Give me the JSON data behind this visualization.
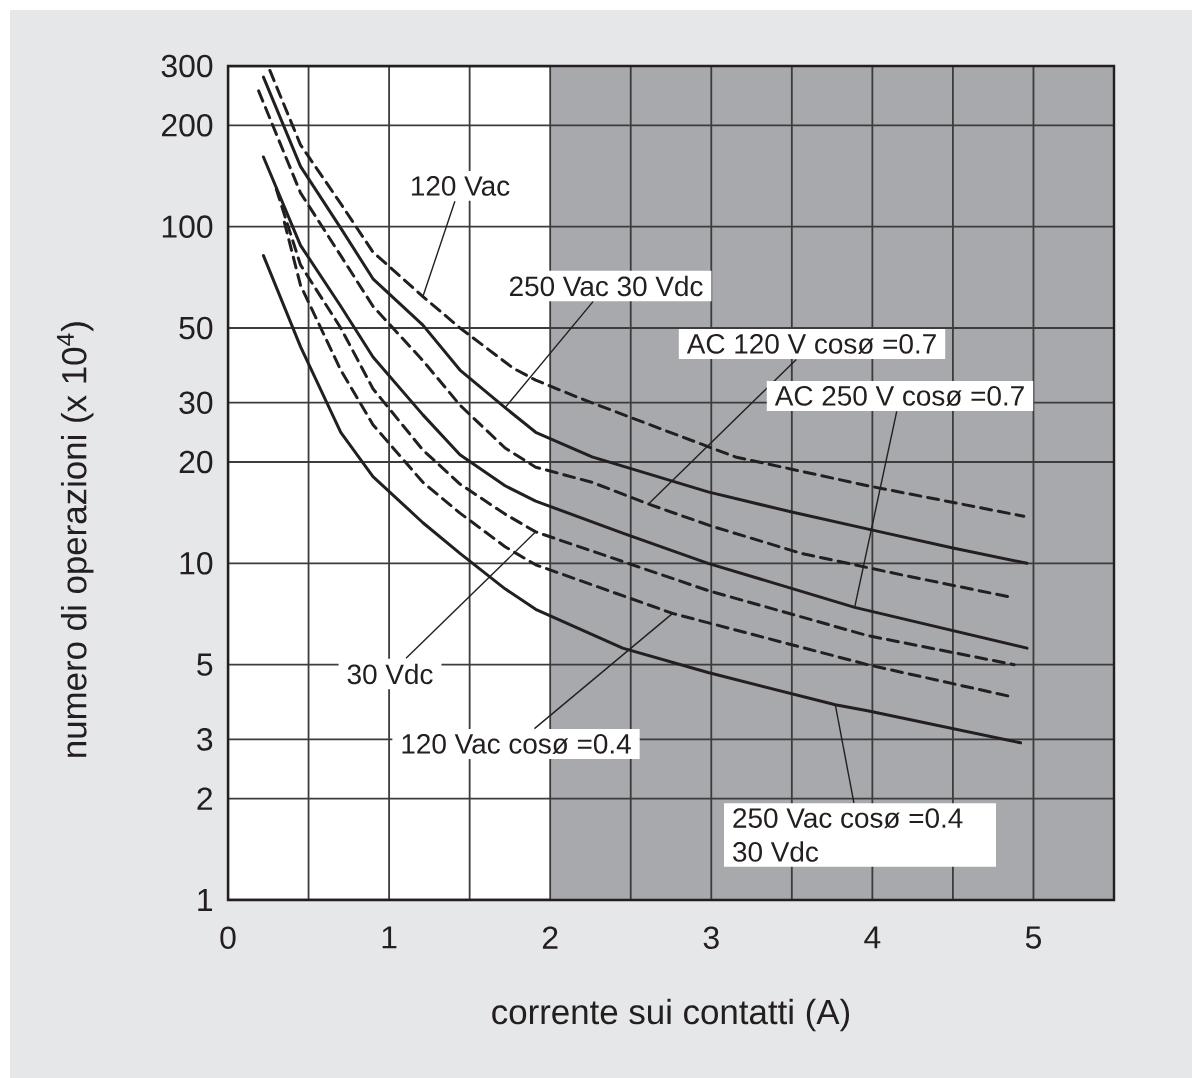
{
  "chart_data": {
    "type": "line",
    "xlabel": "corrente sui contatti (A)",
    "ylabel": "numero di operazioni (x 10$^{4}$)",
    "xlim": [
      0,
      5.5
    ],
    "xticks": [
      0,
      {
        "value": 0.5,
        "label": null
      },
      1,
      {
        "value": 1.5,
        "label": null
      },
      2,
      {
        "value": 2.5,
        "label": null
      },
      3,
      {
        "value": 3.5,
        "label": null
      },
      4,
      {
        "value": 4.5,
        "label": null
      },
      5
    ],
    "ylim": [
      1,
      300
    ],
    "yticks": [
      1,
      2,
      3,
      5,
      10,
      20,
      30,
      50,
      100,
      200,
      300
    ],
    "log": "y",
    "grid": true,
    "bands": [
      {
        "axis": "x",
        "from": 2,
        "to": 5.5,
        "color": "#a7a9ac"
      }
    ],
    "series": [
      {
        "color": "#231f20",
        "line_style": "dashed",
        "x": [
          0.26,
          0.45,
          0.7,
          0.9,
          1.21,
          1.44,
          1.77,
          1.91,
          2.18,
          2.6,
          3.15,
          3.97,
          4.94
        ],
        "values": [
          291,
          175,
          117,
          84,
          62,
          50,
          38,
          35,
          31,
          26,
          20.7,
          17,
          13.8
        ]
      },
      {
        "color": "#231f20",
        "line_style": "solid",
        "x": [
          0.22,
          0.45,
          0.7,
          0.9,
          1.21,
          1.44,
          1.72,
          1.91,
          2.26,
          2.98,
          3.5,
          4.05,
          4.5,
          4.96
        ],
        "values": [
          278,
          151,
          99,
          70,
          51,
          37.5,
          29,
          24.5,
          20.7,
          16.3,
          14.2,
          12.4,
          11.1,
          10
        ]
      },
      {
        "color": "#231f20",
        "line_style": "dashed",
        "x": [
          0.19,
          0.45,
          0.7,
          0.9,
          1.21,
          1.44,
          1.72,
          1.91,
          2.26,
          2.61,
          3.0,
          3.56,
          4.2,
          4.88
        ],
        "values": [
          253,
          126,
          82,
          58,
          40,
          29.5,
          22,
          19.3,
          17.4,
          15,
          12.9,
          10.7,
          9.2,
          7.9
        ]
      },
      {
        "color": "#231f20",
        "line_style": "solid",
        "x": [
          0.22,
          0.45,
          0.7,
          0.9,
          1.21,
          1.44,
          1.72,
          1.91,
          2.45,
          2.98,
          3.89,
          4.96
        ],
        "values": [
          161,
          88,
          58,
          41,
          27.6,
          21,
          17,
          15.3,
          12.3,
          10,
          7.4,
          5.6
        ]
      },
      {
        "color": "#231f20",
        "line_style": "dashed",
        "x": [
          0.3,
          0.45,
          0.7,
          0.9,
          1.21,
          1.44,
          1.72,
          1.91,
          2.98,
          3.97,
          4.88
        ],
        "values": [
          129,
          77,
          50,
          33,
          21.7,
          17.2,
          14,
          12.4,
          8.3,
          6.1,
          5
        ]
      },
      {
        "color": "#231f20",
        "line_style": "dashed",
        "x": [
          0.35,
          0.45,
          0.7,
          0.9,
          1.21,
          1.44,
          1.72,
          1.91,
          2.76,
          3.97,
          4.88
        ],
        "values": [
          103,
          67,
          37.5,
          25.8,
          17.4,
          14.1,
          11.2,
          9.9,
          7.1,
          5,
          4
        ]
      },
      {
        "color": "#231f20",
        "line_style": "solid",
        "x": [
          0.22,
          0.45,
          0.7,
          0.9,
          1.21,
          1.44,
          1.72,
          1.91,
          2.45,
          2.98,
          3.77,
          3.97,
          4.92
        ],
        "values": [
          82,
          44,
          24.5,
          18.1,
          13.2,
          10.7,
          8.4,
          7.3,
          5.6,
          4.74,
          3.8,
          3.65,
          2.93
        ]
      }
    ],
    "annotations": [
      {
        "text": "120 Vac",
        "x": 1.21,
        "y": 62
      },
      {
        "text": "250 Vac 30 Vdc",
        "x": 1.72,
        "y": 29
      },
      {
        "text": "AC 120 V cosø =0.7",
        "x": 2.61,
        "y": 15
      },
      {
        "text": "AC 250 V cosø =0.7",
        "x": 3.89,
        "y": 7.4
      },
      {
        "text": "30 Vdc",
        "x": 1.91,
        "y": 12.4
      },
      {
        "text": "120 Vac cosø =0.4",
        "x": 2.76,
        "y": 7.1
      },
      {
        "text": "250 Vac cosø =0.4 30 Vdc",
        "x": 3.77,
        "y": 3.8
      }
    ]
  }
}
